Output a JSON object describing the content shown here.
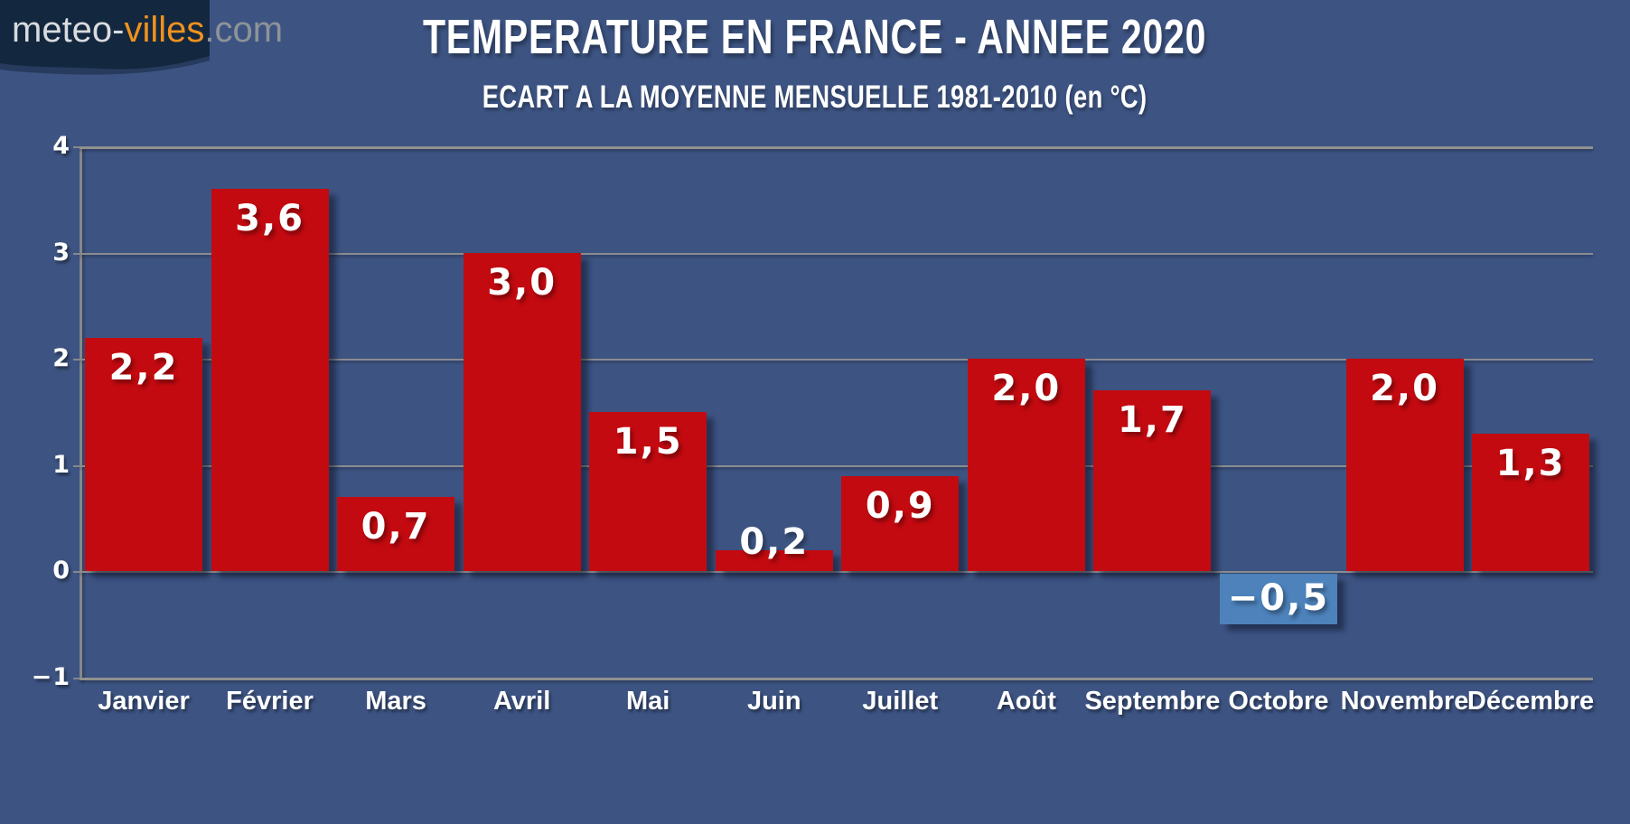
{
  "logo": {
    "text_primary": "meteo-",
    "text_accent": "villes",
    "text_suffix": ".com"
  },
  "header": {
    "title": "TEMPERATURE EN FRANCE - ANNEE 2020",
    "subtitle": "ECART A LA MOYENNE MENSUELLE 1981-2010 (en °C)"
  },
  "chart_data": {
    "type": "bar",
    "title": "TEMPERATURE EN FRANCE - ANNEE 2020",
    "subtitle": "ECART A LA MOYENNE MENSUELLE 1981-2010 (en °C)",
    "categories": [
      "Janvier",
      "Février",
      "Mars",
      "Avril",
      "Mai",
      "Juin",
      "Juillet",
      "Août",
      "Septembre",
      "Octobre",
      "Novembre",
      "Décembre"
    ],
    "values": [
      2.2,
      3.6,
      0.7,
      3.0,
      1.5,
      0.2,
      0.9,
      2.0,
      1.7,
      -0.5,
      2.0,
      1.3
    ],
    "value_labels": [
      "2,2",
      "3,6",
      "0,7",
      "3,0",
      "1,5",
      "0,2",
      "0,9",
      "2,0",
      "1,7",
      "−0,5",
      "2,0",
      "1,3"
    ],
    "ylim": [
      -1,
      4
    ],
    "yticks": [
      4,
      3,
      2,
      1,
      0,
      -1
    ],
    "ytick_labels": [
      "4",
      "3",
      "2",
      "1",
      "0",
      "−1"
    ],
    "grid": true,
    "legend": "none",
    "colors": {
      "positive_bar": "#c30a10",
      "negative_bar": "#4d82bb",
      "background": "#3d5483",
      "gridline": "#8a8c8f",
      "text": "#ffffff",
      "logo_background": "#13273f",
      "logo_accent": "#f0921e"
    }
  }
}
